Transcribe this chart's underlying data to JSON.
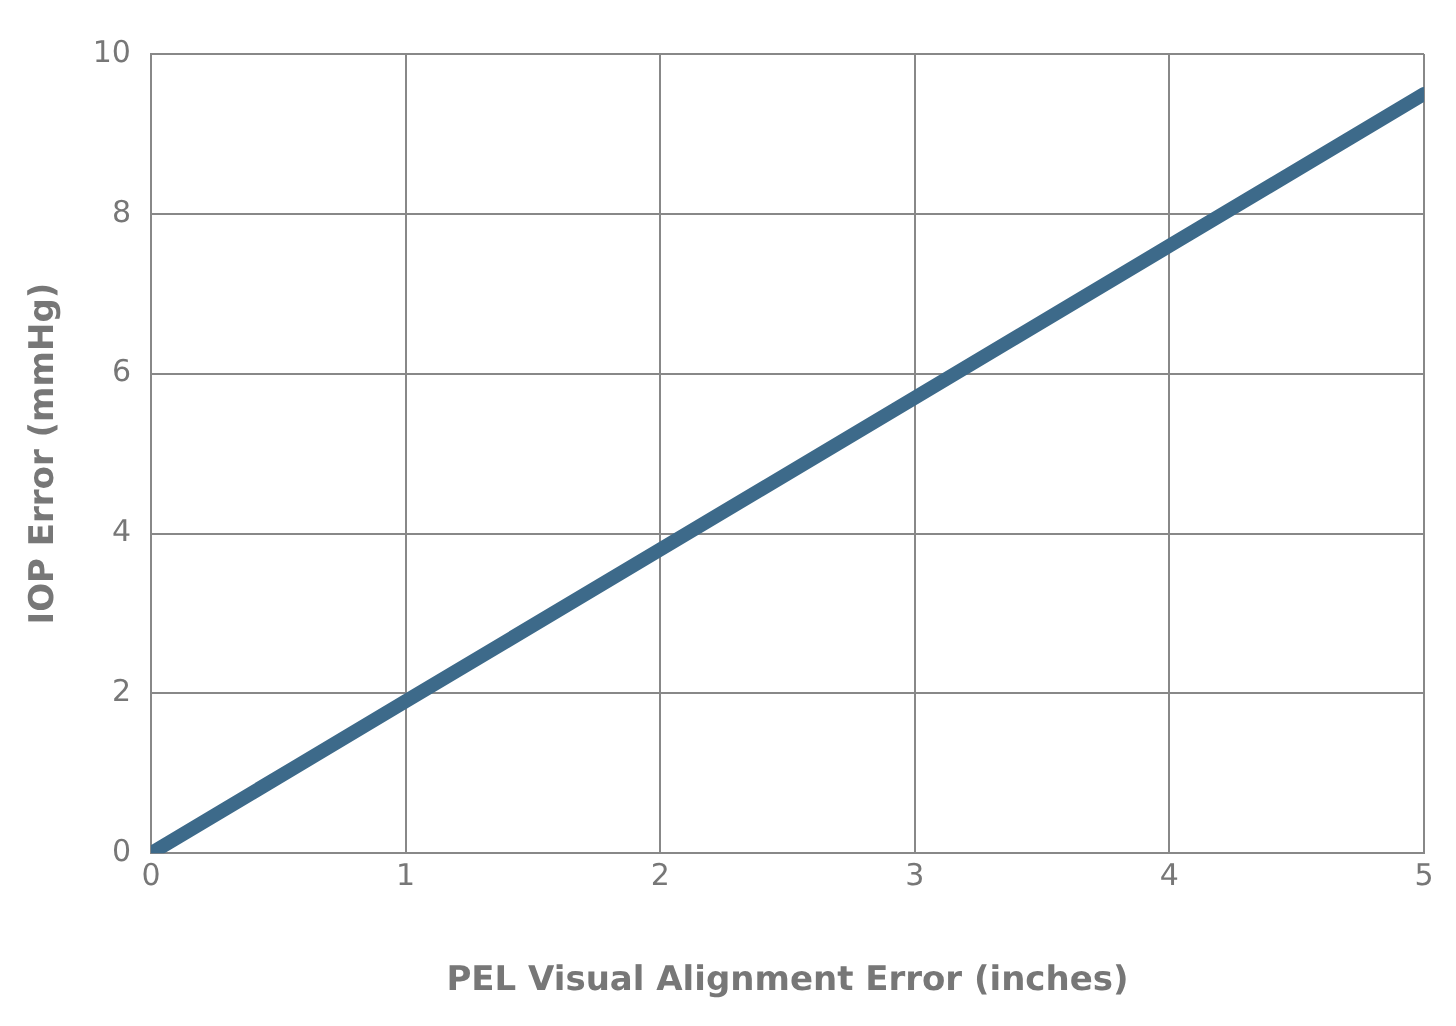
{
  "chart_data": {
    "type": "line",
    "xlabel": "PEL Visual Alignment Error (inches)",
    "ylabel": "IOP Error (mmHg)",
    "x": [
      0,
      1,
      2,
      3,
      4,
      5
    ],
    "series": [
      {
        "color": "#3d6a8a",
        "values": [
          0,
          1.9,
          3.8,
          5.7,
          7.6,
          9.5
        ]
      }
    ],
    "xlim": [
      0,
      5
    ],
    "xticks": [
      0,
      1,
      2,
      3,
      4,
      5
    ],
    "ylim": [
      0,
      10
    ],
    "yticks": [
      0,
      2,
      4,
      6,
      8,
      10
    ],
    "grid": true,
    "legend": false,
    "marker": "none",
    "line_style": "solid"
  }
}
